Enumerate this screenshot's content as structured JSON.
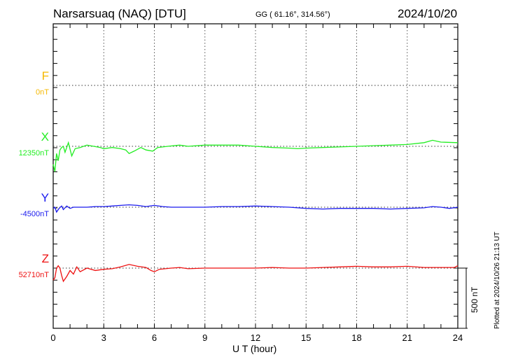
{
  "header": {
    "station": "Narsarsuaq (NAQ)  [DTU]",
    "coords": "GG ( 61.16°, 314.56°)",
    "date": "2024/10/20"
  },
  "footer": {
    "plotted": "Plotted at 2024/10/26 21:13 UT",
    "scale_label": "500 nT"
  },
  "chart_data": {
    "type": "line",
    "title": "Narsarsuaq (NAQ) [DTU] 2024/10/20",
    "xlabel": "U T (hour)",
    "xlim": [
      0,
      24
    ],
    "xticks": [
      "0",
      "3",
      "6",
      "9",
      "12",
      "15",
      "18",
      "21",
      "24"
    ],
    "scale_bar_nT": 500,
    "grid": true,
    "series": [
      {
        "name": "F",
        "baseline": "0nT",
        "color": "#f5b800",
        "points": []
      },
      {
        "name": "X",
        "baseline": "12350nT",
        "color": "#22ee22",
        "points": [
          [
            0,
            -150
          ],
          [
            0.1,
            -210
          ],
          [
            0.2,
            -60
          ],
          [
            0.3,
            -120
          ],
          [
            0.4,
            -30
          ],
          [
            0.5,
            -10
          ],
          [
            0.6,
            0
          ],
          [
            0.7,
            -50
          ],
          [
            0.9,
            30
          ],
          [
            1.1,
            -80
          ],
          [
            1.3,
            -20
          ],
          [
            1.6,
            -10
          ],
          [
            2,
            10
          ],
          [
            2.4,
            0
          ],
          [
            2.8,
            -10
          ],
          [
            3,
            -20
          ],
          [
            3.5,
            -10
          ],
          [
            4,
            -20
          ],
          [
            4.3,
            -30
          ],
          [
            4.5,
            -60
          ],
          [
            4.8,
            -40
          ],
          [
            5.2,
            -10
          ],
          [
            5.5,
            -30
          ],
          [
            5.9,
            -40
          ],
          [
            6.2,
            -10
          ],
          [
            6.8,
            0
          ],
          [
            7.5,
            10
          ],
          [
            8,
            0
          ],
          [
            9,
            10
          ],
          [
            10,
            10
          ],
          [
            11,
            10
          ],
          [
            12,
            0
          ],
          [
            13,
            -10
          ],
          [
            14,
            -15
          ],
          [
            14.5,
            -20
          ],
          [
            15,
            -15
          ],
          [
            16,
            -10
          ],
          [
            17,
            -5
          ],
          [
            18,
            0
          ],
          [
            19,
            5
          ],
          [
            20,
            10
          ],
          [
            21,
            15
          ],
          [
            22,
            30
          ],
          [
            22.5,
            50
          ],
          [
            23,
            35
          ],
          [
            24,
            30
          ]
        ]
      },
      {
        "name": "Y",
        "baseline": "-4500nT",
        "color": "#1a1aee",
        "points": [
          [
            0,
            -10
          ],
          [
            0.1,
            0
          ],
          [
            0.2,
            -40
          ],
          [
            0.35,
            -10
          ],
          [
            0.5,
            10
          ],
          [
            0.6,
            -20
          ],
          [
            0.8,
            10
          ],
          [
            1,
            -10
          ],
          [
            1.2,
            0
          ],
          [
            1.5,
            0
          ],
          [
            2,
            0
          ],
          [
            2.5,
            5
          ],
          [
            3,
            5
          ],
          [
            3.5,
            10
          ],
          [
            4,
            15
          ],
          [
            4.5,
            20
          ],
          [
            5,
            15
          ],
          [
            5.5,
            5
          ],
          [
            6,
            15
          ],
          [
            6.5,
            5
          ],
          [
            7,
            0
          ],
          [
            8,
            0
          ],
          [
            9,
            0
          ],
          [
            10,
            5
          ],
          [
            11,
            5
          ],
          [
            12,
            10
          ],
          [
            13,
            5
          ],
          [
            14,
            0
          ],
          [
            15,
            -10
          ],
          [
            16,
            -15
          ],
          [
            17,
            -10
          ],
          [
            18,
            -10
          ],
          [
            19,
            -10
          ],
          [
            20,
            -15
          ],
          [
            21,
            -10
          ],
          [
            22,
            -5
          ],
          [
            22.5,
            5
          ],
          [
            23,
            0
          ],
          [
            23.5,
            -10
          ],
          [
            24,
            0
          ]
        ]
      },
      {
        "name": "Z",
        "baseline": "52710nT",
        "color": "#ee1111",
        "points": [
          [
            0,
            -100
          ],
          [
            0.1,
            -80
          ],
          [
            0.2,
            0
          ],
          [
            0.3,
            20
          ],
          [
            0.4,
            0
          ],
          [
            0.5,
            -60
          ],
          [
            0.6,
            -110
          ],
          [
            0.8,
            -70
          ],
          [
            1,
            -20
          ],
          [
            1.2,
            -50
          ],
          [
            1.4,
            10
          ],
          [
            1.6,
            -30
          ],
          [
            2,
            0
          ],
          [
            2.5,
            -20
          ],
          [
            3,
            -10
          ],
          [
            3.5,
            -5
          ],
          [
            4,
            10
          ],
          [
            4.5,
            30
          ],
          [
            5,
            15
          ],
          [
            5.5,
            5
          ],
          [
            5.8,
            -20
          ],
          [
            6,
            -30
          ],
          [
            6.3,
            -10
          ],
          [
            7,
            0
          ],
          [
            7.5,
            5
          ],
          [
            8,
            -5
          ],
          [
            9,
            0
          ],
          [
            10,
            0
          ],
          [
            11,
            0
          ],
          [
            12,
            0
          ],
          [
            13,
            5
          ],
          [
            14,
            0
          ],
          [
            15,
            0
          ],
          [
            16,
            5
          ],
          [
            17,
            10
          ],
          [
            18,
            15
          ],
          [
            19,
            10
          ],
          [
            20,
            10
          ],
          [
            21,
            15
          ],
          [
            22,
            5
          ],
          [
            23,
            5
          ],
          [
            23.8,
            5
          ],
          [
            24,
            20
          ]
        ]
      }
    ]
  }
}
